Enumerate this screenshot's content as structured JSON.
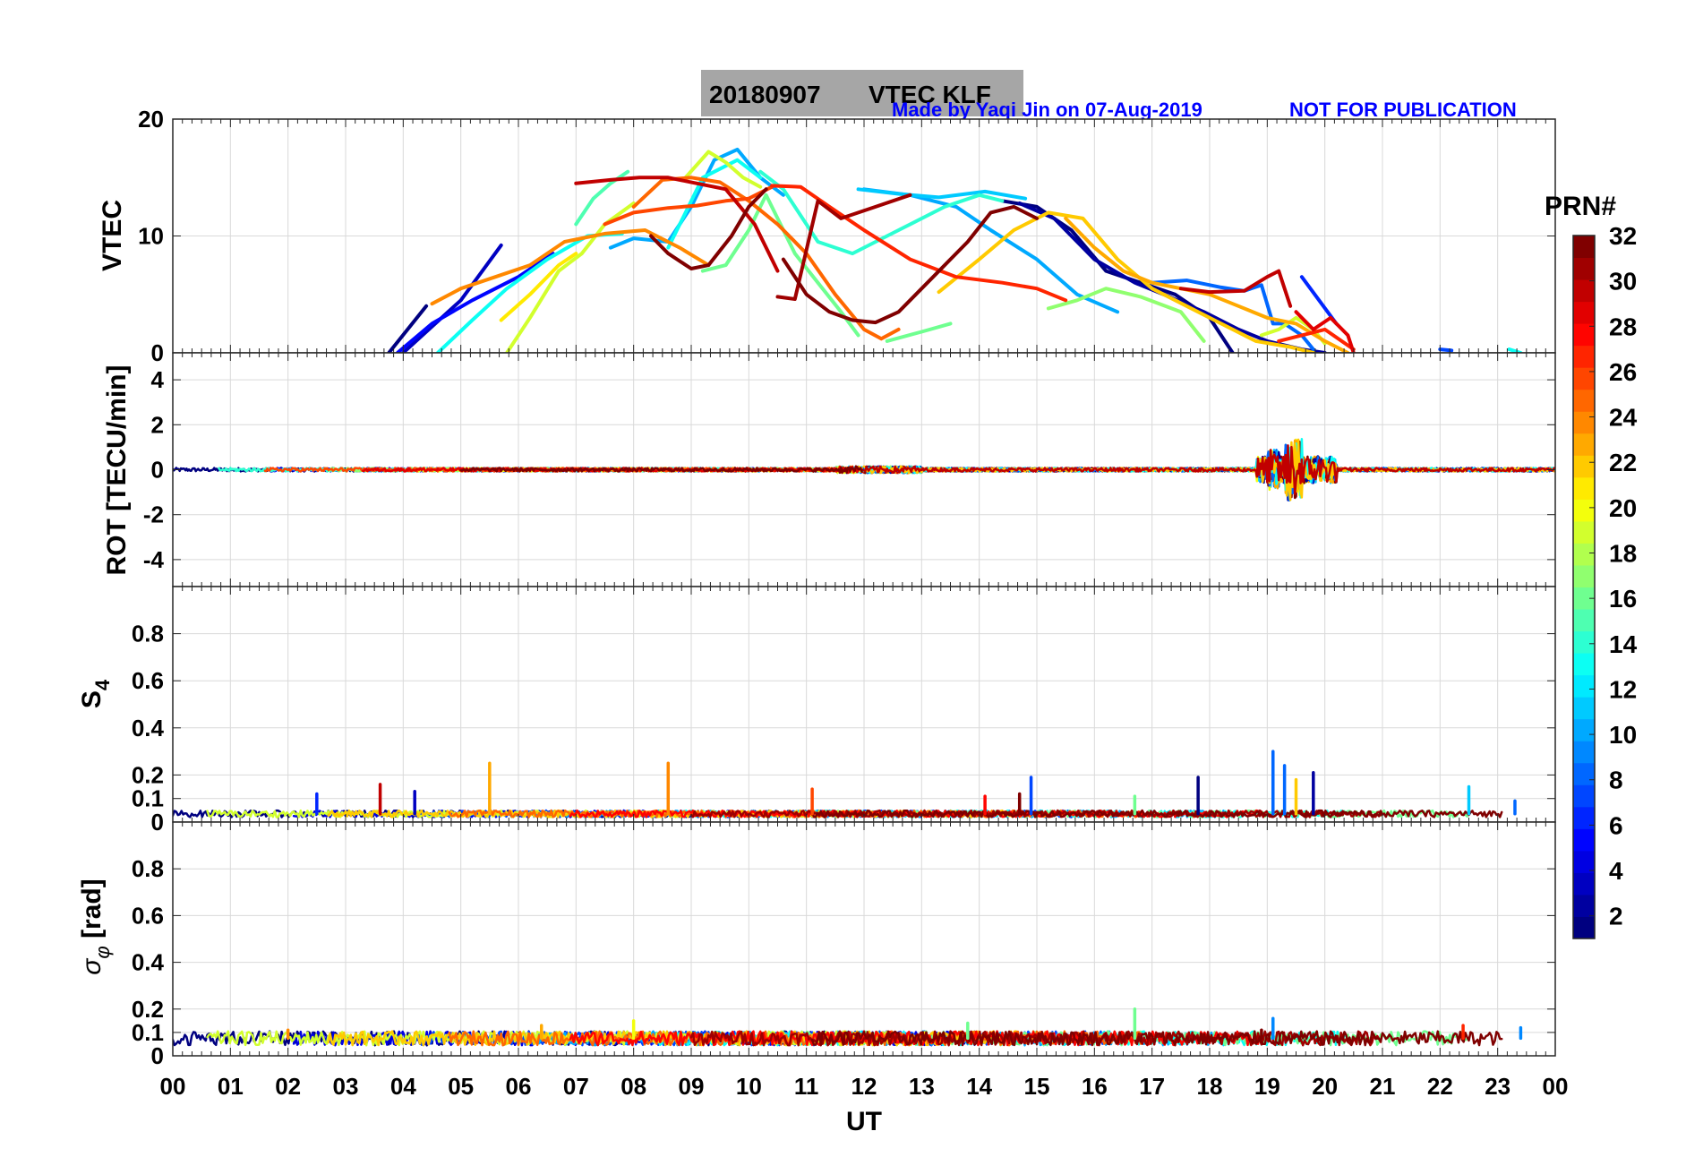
{
  "title": {
    "date": "20180907",
    "text": "VTEC  KLF"
  },
  "credit": {
    "made_by": "Made by Yaqi Jin on 07-Aug-2019",
    "notice": "NOT FOR PUBLICATION",
    "color": "#0000ff"
  },
  "colorbar": {
    "title": "PRN#",
    "range": [
      1,
      32
    ],
    "ticks": [
      "2",
      "4",
      "6",
      "8",
      "10",
      "12",
      "14",
      "16",
      "18",
      "20",
      "22",
      "24",
      "26",
      "28",
      "30",
      "32"
    ],
    "colormap": "jet"
  },
  "x_axis": {
    "label": "UT",
    "range": [
      0,
      24
    ],
    "tick_labels": [
      "00",
      "01",
      "02",
      "03",
      "04",
      "05",
      "06",
      "07",
      "08",
      "09",
      "10",
      "11",
      "12",
      "13",
      "14",
      "15",
      "16",
      "17",
      "18",
      "19",
      "20",
      "21",
      "22",
      "23",
      "00"
    ]
  },
  "chart_data": [
    {
      "type": "line",
      "id": "vtec",
      "ylabel": "VTEC",
      "ylim": [
        0,
        20
      ],
      "yticks": [
        "0",
        "10",
        "20"
      ],
      "grid": true,
      "series": [
        {
          "prn": 1,
          "x": [
            3.75,
            4.4
          ],
          "y": [
            0,
            4
          ]
        },
        {
          "prn": 3,
          "x": [
            4.0,
            5.0,
            5.7
          ],
          "y": [
            0,
            4.5,
            9.2
          ]
        },
        {
          "prn": 5,
          "x": [
            3.9,
            4.5,
            5.2,
            6.0,
            6.6
          ],
          "y": [
            0,
            2.5,
            4.5,
            6.5,
            8.5
          ]
        },
        {
          "prn": 1,
          "x": [
            14.4,
            15.0,
            15.6,
            16.2,
            16.8,
            17.4,
            18.0,
            18.4
          ],
          "y": [
            13,
            12.5,
            10.5,
            7.0,
            6.0,
            5.0,
            3.0,
            0
          ]
        },
        {
          "prn": 2,
          "x": [
            14.7,
            15.3,
            16.0,
            16.7,
            17.3,
            17.9,
            18.5,
            19.0,
            19.6,
            20.0
          ],
          "y": [
            12.8,
            11.5,
            8.0,
            6.0,
            4.8,
            3.5,
            2.0,
            1.0,
            0.3,
            0
          ]
        },
        {
          "prn": 6,
          "x": [
            19.6,
            20.2
          ],
          "y": [
            6.5,
            2.5
          ]
        },
        {
          "prn": 7,
          "x": [
            22.0,
            22.2
          ],
          "y": [
            0.3,
            0.2
          ]
        },
        {
          "prn": 8,
          "x": [
            17.0,
            17.6,
            18.2,
            18.6,
            18.9,
            19.1,
            19.3,
            19.6,
            19.8
          ],
          "y": [
            6.0,
            6.2,
            5.6,
            5.3,
            5.8,
            2.5,
            2.5,
            1.5,
            0.3
          ]
        },
        {
          "prn": 10,
          "x": [
            7.6,
            8.0,
            8.6,
            9.0,
            9.4,
            9.8,
            10.2,
            10.6
          ],
          "y": [
            9,
            9.8,
            9.5,
            12.5,
            16.5,
            17.4,
            15.0,
            13.5
          ]
        },
        {
          "prn": 10,
          "x": [
            12.0,
            12.8,
            13.6,
            14.2,
            15.0,
            15.7,
            16.4
          ],
          "y": [
            14,
            13.5,
            12.5,
            10.5,
            8.0,
            5.0,
            3.5
          ]
        },
        {
          "prn": 11,
          "x": [
            11.9,
            12.6,
            13.3,
            14.1,
            14.8
          ],
          "y": [
            14,
            13.6,
            13.3,
            13.8,
            13.2
          ]
        },
        {
          "prn": 13,
          "x": [
            4.6,
            5.2,
            5.8,
            6.5,
            7.2,
            7.8
          ],
          "y": [
            0,
            2.8,
            5.5,
            8.0,
            10.0,
            10.2
          ]
        },
        {
          "prn": 13,
          "x": [
            8.6,
            9.2,
            9.8,
            10.2
          ],
          "y": [
            9.0,
            15.0,
            16.5,
            15.0
          ]
        },
        {
          "prn": 13,
          "x": [
            23.2,
            23.4
          ],
          "y": [
            0.3,
            0
          ]
        },
        {
          "prn": 14,
          "x": [
            10.2,
            10.6,
            11.2,
            11.8,
            12.6,
            13.4,
            14.0,
            14.4
          ],
          "y": [
            15.5,
            14.0,
            9.5,
            8.5,
            10.5,
            12.5,
            13.5,
            13.0
          ]
        },
        {
          "prn": 15,
          "x": [
            7.0,
            7.3,
            7.6,
            7.9
          ],
          "y": [
            11,
            13.2,
            14.5,
            15.5
          ]
        },
        {
          "prn": 16,
          "x": [
            9.2,
            9.6,
            10.0,
            10.3,
            10.8,
            11.2,
            11.6,
            11.9
          ],
          "y": [
            7.0,
            7.5,
            10.5,
            13.5,
            8.5,
            6.0,
            3.5,
            1.5
          ]
        },
        {
          "prn": 16,
          "x": [
            12.4,
            13.0,
            13.5
          ],
          "y": [
            1.0,
            1.8,
            2.5
          ]
        },
        {
          "prn": 17,
          "x": [
            15.2,
            15.7,
            16.2,
            16.8,
            17.5,
            17.9
          ],
          "y": [
            3.8,
            4.5,
            5.5,
            4.8,
            3.5,
            1.0
          ]
        },
        {
          "prn": 19,
          "x": [
            5.8,
            6.2,
            6.7,
            7.1,
            7.5,
            8.0
          ],
          "y": [
            0,
            3.0,
            7.0,
            8.5,
            11.0,
            12.8
          ]
        },
        {
          "prn": 19,
          "x": [
            8.9,
            9.3,
            9.6,
            9.9,
            10.2
          ],
          "y": [
            15.0,
            17.2,
            16.3,
            15.0,
            14.2
          ]
        },
        {
          "prn": 19,
          "x": [
            18.9,
            19.2,
            19.5,
            19.8,
            20.0
          ],
          "y": [
            1.5,
            2.0,
            3.0,
            2.0,
            0.8
          ]
        },
        {
          "prn": 21,
          "x": [
            5.7,
            6.2,
            6.7,
            7.0
          ],
          "y": [
            2.8,
            5.0,
            7.5,
            8.5
          ]
        },
        {
          "prn": 22,
          "x": [
            13.3,
            14.0,
            14.6,
            15.2,
            15.8,
            16.4,
            17.0,
            17.6,
            18.2,
            18.8,
            19.4,
            19.8
          ],
          "y": [
            5.2,
            8.0,
            10.5,
            12.0,
            11.5,
            8.0,
            5.5,
            4.0,
            2.5,
            1.0,
            0.5,
            0
          ]
        },
        {
          "prn": 23,
          "x": [
            15.5,
            16.0,
            16.5,
            17.0,
            17.5,
            18.0,
            18.5,
            19.0,
            19.5,
            20.0,
            20.4
          ],
          "y": [
            11.5,
            9.0,
            7.0,
            6.0,
            5.5,
            5.0,
            4.0,
            3.0,
            2.5,
            1.0,
            0
          ]
        },
        {
          "prn": 24,
          "x": [
            4.5,
            5.0,
            5.6,
            6.2,
            6.8,
            7.5,
            8.2,
            8.8,
            9.3
          ],
          "y": [
            4.2,
            5.5,
            6.5,
            7.5,
            9.5,
            10.2,
            10.5,
            9.0,
            7.5
          ]
        },
        {
          "prn": 25,
          "x": [
            8.0,
            8.5,
            9.0,
            9.5,
            10.0,
            10.5,
            11.0,
            11.5,
            12.0,
            12.3,
            12.6
          ],
          "y": [
            12.5,
            14.8,
            15.0,
            14.6,
            13.0,
            11.0,
            8.5,
            5.0,
            2.0,
            1.2,
            2.0
          ]
        },
        {
          "prn": 26,
          "x": [
            7.5,
            8.0,
            8.6,
            9.1,
            9.6,
            10.0,
            10.4
          ],
          "y": [
            11.0,
            12.0,
            12.4,
            12.6,
            13.0,
            13.2,
            14.2
          ]
        },
        {
          "prn": 27,
          "x": [
            10.4,
            10.9,
            11.4,
            12.0,
            12.8,
            13.6,
            14.4,
            15.0,
            15.5
          ],
          "y": [
            14.3,
            14.2,
            12.5,
            10.5,
            8.0,
            6.5,
            6.0,
            5.5,
            4.5
          ]
        },
        {
          "prn": 27,
          "x": [
            19.2,
            19.6,
            20.0,
            20.5
          ],
          "y": [
            1.0,
            1.5,
            2.0,
            0.3
          ]
        },
        {
          "prn": 29,
          "x": [
            19.5,
            19.8,
            20.1,
            20.4,
            20.5
          ],
          "y": [
            3.5,
            2.0,
            3.0,
            1.5,
            0
          ]
        },
        {
          "prn": 30,
          "x": [
            7.0,
            7.6,
            8.1,
            8.6,
            9.1,
            9.6,
            10.1,
            10.5
          ],
          "y": [
            14.5,
            14.8,
            15.0,
            15.0,
            14.5,
            14.0,
            11.0,
            7.0
          ]
        },
        {
          "prn": 30,
          "x": [
            17.5,
            18.0,
            18.6,
            19.0,
            19.2,
            19.4
          ],
          "y": [
            5.5,
            5.2,
            5.3,
            6.5,
            7.0,
            4.0
          ]
        },
        {
          "prn": 31,
          "x": [
            10.5,
            10.8,
            11.2,
            11.6,
            12.2,
            12.8
          ],
          "y": [
            4.8,
            4.6,
            13.0,
            11.5,
            12.5,
            13.5
          ]
        },
        {
          "prn": 32,
          "x": [
            8.3,
            8.6,
            9.0,
            9.3,
            9.7,
            10.0,
            10.3
          ],
          "y": [
            10.0,
            8.5,
            7.2,
            7.5,
            10.0,
            12.5,
            14.0
          ]
        },
        {
          "prn": 32,
          "x": [
            10.6,
            11.0,
            11.4,
            11.8,
            12.2,
            12.6,
            13.2,
            13.8,
            14.2,
            14.6,
            15.0
          ],
          "y": [
            8.0,
            5.0,
            3.5,
            2.8,
            2.6,
            3.5,
            6.5,
            9.5,
            12.0,
            12.5,
            11.5
          ]
        }
      ]
    },
    {
      "type": "line",
      "id": "rot",
      "ylabel": "ROT [TECU/min]",
      "ylim": [
        -5.2,
        5.2
      ],
      "yticks": [
        "-4",
        "-2",
        "0",
        "2",
        "4"
      ],
      "grid": true,
      "noise_level": 0.08,
      "activity": [
        {
          "ut_range": [
            11.5,
            13.0
          ],
          "amplitude": 0.15
        },
        {
          "ut_range": [
            18.8,
            20.2
          ],
          "amplitude": 0.6
        },
        {
          "ut_range": [
            19.0,
            19.2
          ],
          "amplitude": 0.9
        },
        {
          "ut_range": [
            19.3,
            19.6
          ],
          "amplitude": 1.4
        }
      ]
    },
    {
      "type": "line",
      "id": "s4",
      "ylabel": "S4",
      "ylim": [
        0,
        1
      ],
      "yticks": [
        "0",
        "0.1",
        "0.2",
        "0.4",
        "0.6",
        "0.8"
      ],
      "grid": true,
      "baseline": 0.035,
      "spikes": [
        {
          "ut": 2.5,
          "value": 0.12,
          "prn": 6
        },
        {
          "ut": 3.6,
          "value": 0.16,
          "prn": 30
        },
        {
          "ut": 4.2,
          "value": 0.13,
          "prn": 3
        },
        {
          "ut": 5.5,
          "value": 0.25,
          "prn": 23
        },
        {
          "ut": 8.6,
          "value": 0.25,
          "prn": 24
        },
        {
          "ut": 11.1,
          "value": 0.14,
          "prn": 26
        },
        {
          "ut": 14.1,
          "value": 0.11,
          "prn": 28
        },
        {
          "ut": 14.7,
          "value": 0.12,
          "prn": 32
        },
        {
          "ut": 14.9,
          "value": 0.19,
          "prn": 7
        },
        {
          "ut": 16.7,
          "value": 0.11,
          "prn": 16
        },
        {
          "ut": 17.8,
          "value": 0.19,
          "prn": 1
        },
        {
          "ut": 19.1,
          "value": 0.3,
          "prn": 8
        },
        {
          "ut": 19.3,
          "value": 0.24,
          "prn": 8
        },
        {
          "ut": 19.5,
          "value": 0.18,
          "prn": 22
        },
        {
          "ut": 19.8,
          "value": 0.21,
          "prn": 2
        },
        {
          "ut": 22.5,
          "value": 0.15,
          "prn": 11
        },
        {
          "ut": 23.3,
          "value": 0.09,
          "prn": 8
        }
      ]
    },
    {
      "type": "line",
      "id": "sigma_phi",
      "ylabel": "σφ [rad]",
      "ylim": [
        0,
        1
      ],
      "yticks": [
        "0",
        "0.1",
        "0.2",
        "0.4",
        "0.6",
        "0.8"
      ],
      "grid": true,
      "baseline": 0.075,
      "spikes": [
        {
          "ut": 2.0,
          "value": 0.11,
          "prn": 24
        },
        {
          "ut": 6.4,
          "value": 0.13,
          "prn": 23
        },
        {
          "ut": 8.0,
          "value": 0.15,
          "prn": 20
        },
        {
          "ut": 13.8,
          "value": 0.14,
          "prn": 16
        },
        {
          "ut": 16.7,
          "value": 0.2,
          "prn": 16
        },
        {
          "ut": 18.9,
          "value": 0.11,
          "prn": 32
        },
        {
          "ut": 19.1,
          "value": 0.16,
          "prn": 9
        },
        {
          "ut": 22.4,
          "value": 0.13,
          "prn": 27
        },
        {
          "ut": 23.4,
          "value": 0.12,
          "prn": 9
        }
      ]
    }
  ]
}
